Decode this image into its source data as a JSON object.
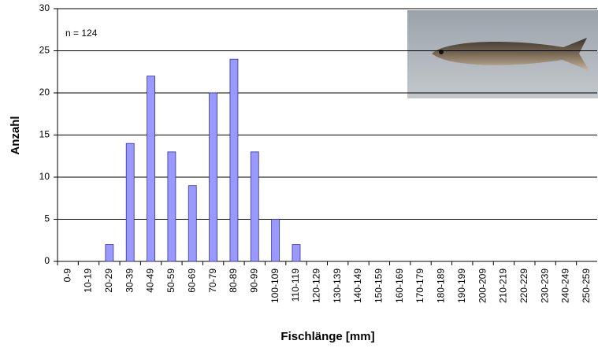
{
  "chart_data": {
    "type": "bar",
    "annotation": "n = 124",
    "xlabel": "Fischlänge [mm]",
    "ylabel": "Anzahl",
    "categories": [
      "0-9",
      "10-19",
      "20-29",
      "30-39",
      "40-49",
      "50-59",
      "60-69",
      "70-79",
      "80-89",
      "90-99",
      "100-109",
      "110-119",
      "120-129",
      "130-139",
      "140-149",
      "150-159",
      "160-169",
      "170-179",
      "180-189",
      "190-199",
      "200-209",
      "210-219",
      "220-229",
      "230-239",
      "240-249",
      "250-259"
    ],
    "values": [
      0,
      0,
      2,
      14,
      22,
      13,
      9,
      20,
      24,
      13,
      5,
      2,
      0,
      0,
      0,
      0,
      0,
      0,
      0,
      0,
      0,
      0,
      0,
      0,
      0,
      0
    ],
    "color": "#9999ff",
    "ylim": [
      0,
      30
    ],
    "yticks": [
      0,
      5,
      10,
      15,
      20,
      25,
      30
    ],
    "grid": true
  }
}
